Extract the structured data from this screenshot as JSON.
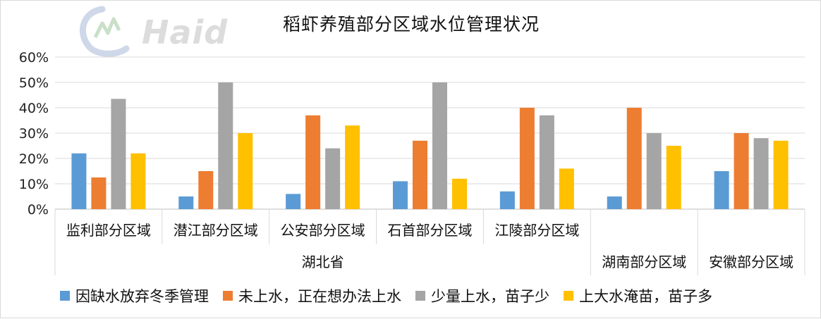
{
  "title": "稻虾养殖部分区域水位管理状况",
  "watermark": "Haid",
  "colors": {
    "series": [
      "#5B9BD5",
      "#ED7D31",
      "#A5A5A5",
      "#FFC000"
    ],
    "grid": "#d9d9d9",
    "axis": "#bfbfbf"
  },
  "chart_data": {
    "type": "bar",
    "title": "稻虾养殖部分区域水位管理状况",
    "categories": [
      "监利部分区域",
      "潜江部分区域",
      "公安部分区域",
      "石首部分区域",
      "江陵部分区域",
      "湖南部分区域",
      "安徽部分区域"
    ],
    "category_groups": [
      {
        "label": "湖北省",
        "categories": [
          "监利部分区域",
          "潜江部分区域",
          "公安部分区域",
          "石首部分区域",
          "江陵部分区域"
        ]
      },
      {
        "label": "",
        "categories": [
          "湖南部分区域"
        ]
      },
      {
        "label": "",
        "categories": [
          "安徽部分区域"
        ]
      }
    ],
    "series": [
      {
        "name": "因缺水放弃冬季管理",
        "values": [
          0.22,
          0.05,
          0.06,
          0.11,
          0.07,
          0.05,
          0.15
        ]
      },
      {
        "name": "未上水，正在想办法上水",
        "values": [
          0.125,
          0.15,
          0.37,
          0.27,
          0.4,
          0.4,
          0.3
        ]
      },
      {
        "name": "少量上水，苗子少",
        "values": [
          0.435,
          0.5,
          0.24,
          0.5,
          0.37,
          0.3,
          0.28
        ]
      },
      {
        "name": "上大水淹苗，苗子多",
        "values": [
          0.22,
          0.3,
          0.33,
          0.12,
          0.16,
          0.25,
          0.27
        ]
      }
    ],
    "ylim": [
      0,
      0.6
    ],
    "yticks": [
      "0%",
      "10%",
      "20%",
      "30%",
      "40%",
      "50%",
      "60%"
    ],
    "grid": true,
    "legend_position": "bottom"
  }
}
